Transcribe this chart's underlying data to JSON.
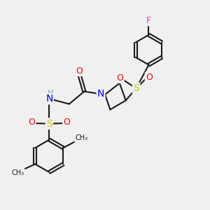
{
  "background_color": "#f0f0f0",
  "bond_color": "#1a1a1a",
  "atom_colors": {
    "O": "#ff0000",
    "N": "#0000ff",
    "S": "#cccc00",
    "F": "#cc44cc",
    "H": "#7a9a9a",
    "C": "#1a1a1a"
  },
  "figsize": [
    3.0,
    3.0
  ],
  "dpi": 100
}
